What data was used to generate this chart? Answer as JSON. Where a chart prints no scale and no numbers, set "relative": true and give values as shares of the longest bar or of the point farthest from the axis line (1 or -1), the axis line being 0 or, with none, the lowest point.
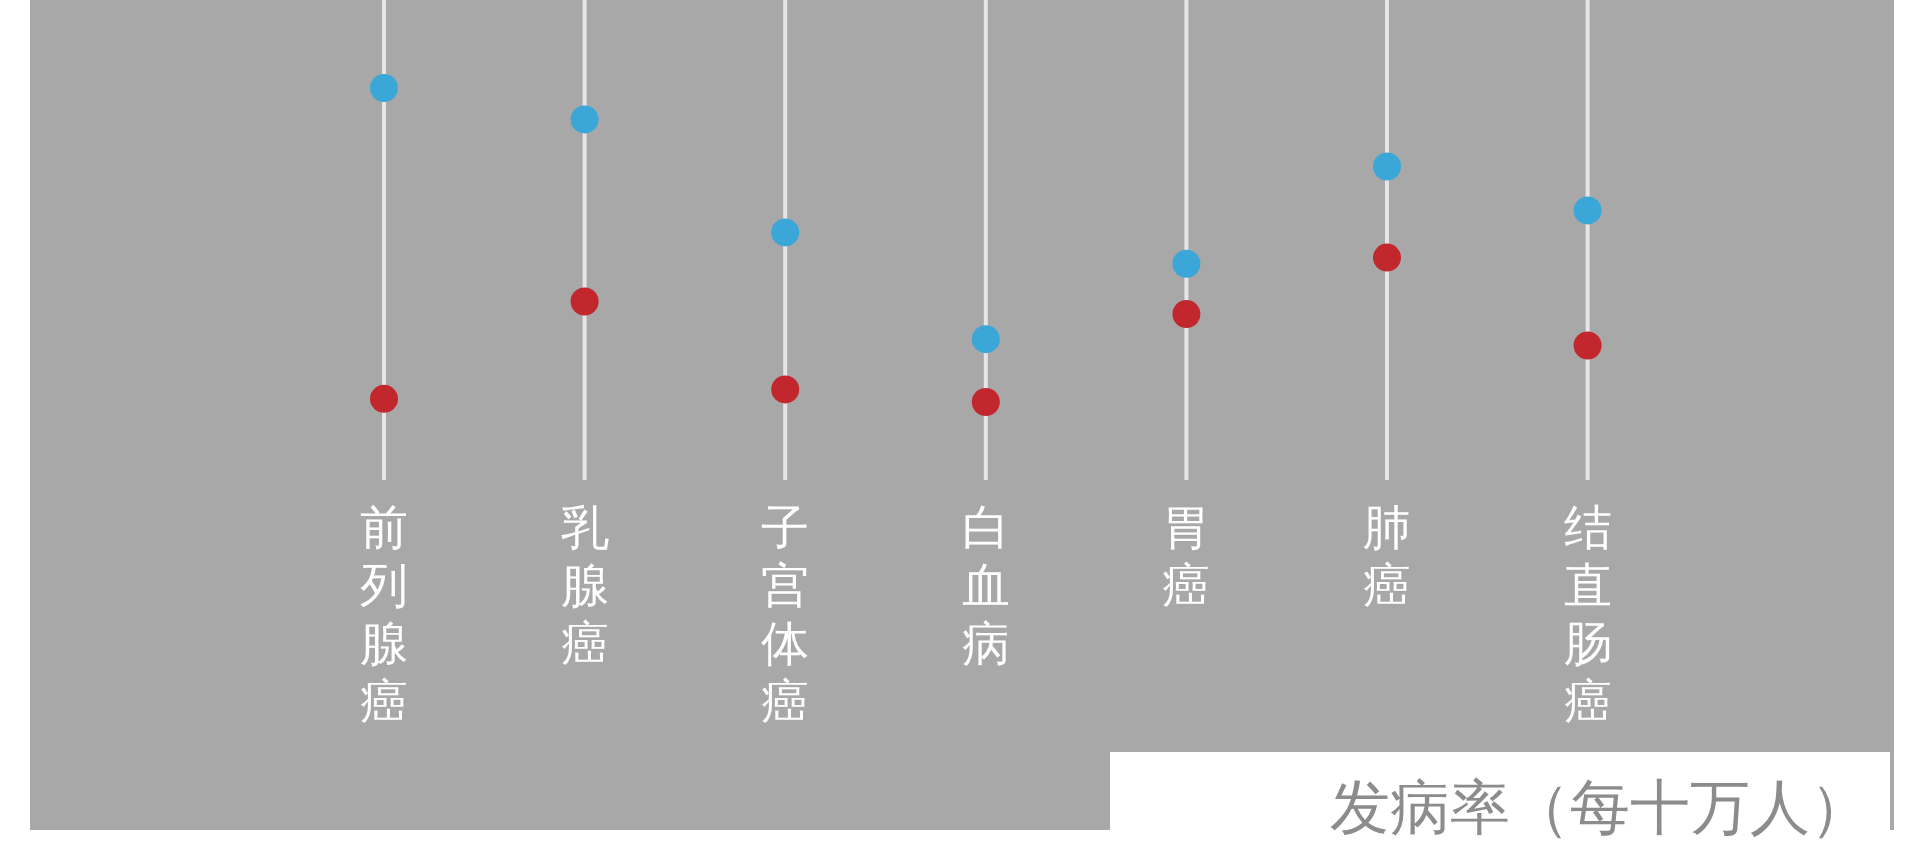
{
  "chart_data": {
    "type": "scatter",
    "relative": true,
    "grid": "x",
    "categories": [
      "前列腺癌",
      "乳腺癌",
      "子宫体癌",
      "白血病",
      "胃癌",
      "肺癌",
      "结直肠癌"
    ],
    "series": [
      {
        "color": "#3ba7d9",
        "values": [
          1,
          0.9,
          0.54,
          0.2,
          0.44,
          0.75,
          0.61
        ]
      },
      {
        "color": "#c1272d",
        "values": [
          0.01,
          0.32,
          0.04,
          0,
          0.28,
          0.46,
          0.18
        ]
      }
    ],
    "annotations": [
      "发病率（每十万人）"
    ]
  }
}
